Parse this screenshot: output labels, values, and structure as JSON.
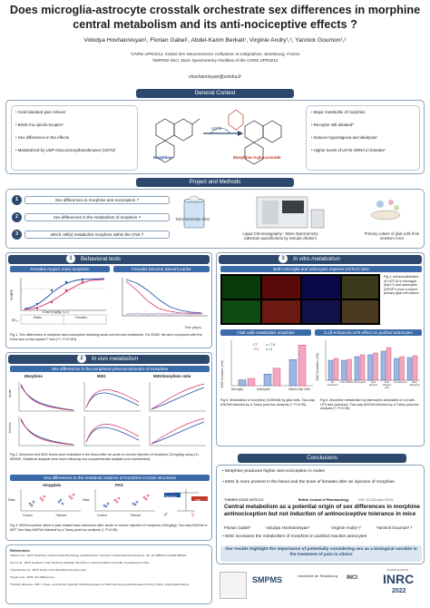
{
  "header": {
    "title": "Does microglia-astrocyte crosstalk orchestrate sex differences in morphine central metabolism and its anti-nociceptive effects ?",
    "authors": "Volodya Hovhannisyan¹, Florian Gabel¹, Abdel-Karim Berkati¹, Virginie Andry¹,², Yannick Goumon¹,²",
    "affiliation1": "¹CNRS UPR3212, Institut des Neurosciences Cellulaires et Intégratives, Strasbourg, France",
    "affiliation2": "²SMPMS-INCI, Mass Spectrometry Facilities of the CNRS UPR3212",
    "email": "vhovhannisyan@unistra.fr"
  },
  "general_context": {
    "heading": "General Context",
    "left_bullets": [
      "Gold standard pain reliever",
      "Binds mu opioid receptor¹",
      "Sex differences in the effects",
      "Metabolized by UDP-Glucuronosyltransferases (UGTs)²"
    ],
    "right_bullets": [
      "Major metabolite of morphine",
      "Receptor still debated³",
      "Induces hyperalgesia and allodynia⁴",
      "Higher levels of UGTs mRNA in females⁵"
    ],
    "morphine_label": "Morphine",
    "metabolite_label": "Morphine-3-glucuronide",
    "enzyme_label": "UGTs"
  },
  "project": {
    "heading": "Project and Methods",
    "questions": [
      {
        "num": "1",
        "text": "Sex differences in morphine anti-nociception ?"
      },
      {
        "num": "2",
        "text": "Sex differences in the metabolism of morphine ?"
      },
      {
        "num": "3",
        "text": "which cell(s) metabolize morphine within the CNS ?"
      }
    ],
    "method1": "Tail Immersion Test",
    "method2": "Liquid Chromatography - Mass Spectrometry (absolute quantification by isotopic dilution)",
    "method3": "Primary culture of glial cells from newborn mice"
  },
  "behavioral": {
    "num": "1",
    "heading": "Behavioral tests",
    "panel_a": "Females require more morphine",
    "panel_b": "Females become tolerant earlier",
    "ylabel_a": "% MPE",
    "xlabel_a": "Dose (mg/kg, s.c.)",
    "xlabel_b": "Time (days)",
    "ed50_label": "ED₅₀",
    "ed50_cols": [
      "Males",
      "Females"
    ],
    "caption": "Fig 1. Sex differences of morphine anti-nociception following acute and chronic treatments. For ED50, fits were compared with the extra sum-of-the-square F test (***, P<0.001)."
  },
  "in_vivo": {
    "num": "2",
    "heading": "In vivo metabolism",
    "subheading": "Sex differences in the peripheral pharmacokinetics of morphine",
    "col_labels": [
      "Morphine",
      "M3G",
      "M3G/morphine ratio"
    ],
    "row_labels": [
      "Acute",
      "Chronic"
    ],
    "caption": "Fig 2. Morphine and M3G levels were evaluated in the blood after an acute or chronic injection of morphine (10mg/kg) using LC-MS/MS. Statistical analysis were done following non-compartmental analysis (not represented).",
    "brain_head": "Sex differences in the metabolic balance of morphine in brain structures",
    "brain_panels": [
      "Amygdala",
      "PAG"
    ],
    "brain_ylabel": "Ratio",
    "brain_x": [
      "Control",
      "Tolerant"
    ],
    "brain_caption": "Fig 3. M3G/morphine ratios in pain related brain structures after acute or chronic injection of morphine (10mg/kg). Two-way ANOVA or ART Two-Way ANOVA followed by a Tukey post-hoc analysis (*, P<0.05).",
    "balance_left": "Morphine",
    "balance_right": "M3G"
  },
  "in_vitro": {
    "num": "3",
    "heading": "In vitro metabolism",
    "subheading": "Both microglia and astrocytes express UGTs in vitro",
    "fig4_caption": "Fig 4. Immunodetection of UGT1A in microglia (Iba1+) and astrocytes (GFAP+) from a mixed primary glial cell culture.",
    "glial_head": "Glial cells metabolize morphine",
    "lps_head": "IL1β enhances LPS effect on purified astrocytes",
    "ylabel": "M3G formation (nM)",
    "glial_x": [
      "Microglia",
      "Astrocytes",
      "Mixed Glial Cells"
    ],
    "legend_ct": "CT",
    "legend_lps": "LPS",
    "n_labels": [
      "n = 7-8",
      "n = 6"
    ],
    "lps_x": [
      "No Treatment",
      "0.1% DMSO",
      "LPS 1µg/mL",
      "IL1β 10ng/mL",
      "IL1β 10ng/mL LPS",
      "IL4 20ng/mL",
      "IFNγ 100ng/mL"
    ],
    "fig5_caption": "Fig 5. Metabolism of morphine (1000nM) by glial cells. Two-way ANOVA followed by a Tukey post-hoc analysis (*, P<0.05).",
    "fig6_caption": "Fig 6. Morphine metabolism by astrocytes stimulated or not with LPS and cytokines. Two-way ANOVA followed by a Tukey post-hoc analysis (*, P<0.05)."
  },
  "conclusions": {
    "heading": "Conclusions",
    "items": [
      "Morphine produces higher anti-nociception in males",
      "M3G is more present in the blood and the brain of females after an injection of morphine",
      "M3G increases the metabolism of morphine in purified reactive astrocytes"
    ],
    "article_tag": "THEMED ISSUE ARTICLE",
    "journal": "British Journal of Pharmacology",
    "doi": "DOI: 10.1111/bph.15792",
    "article_title": "Central metabolism as a potential origin of sex differences in morphine antinociception but not induction of antinociceptive tolerance in mice",
    "article_authors": [
      "Florian Gabel¹",
      "Volodya Hovhannisyan¹",
      "Virginie Andry¹,²",
      "Yannick Goumon¹,²"
    ],
    "takeaway": "Our results highlight the importance of potentially considering sex as a biological variable in the treatment of pain in clinics"
  },
  "references": {
    "heading": "References",
    "lines": [
      "¹Gabel et al., 2022. Morphine-3-Glucuronide Physiology and Behaviour. Frontiers in Molecular Neuroscience. doi: 10.3389/fnmol.2022.882443",
      "²Kuo et al., 2016. Evidence That Interferon-Mediates Morphine in Glucuronidation Could Be Considered for Pain...",
      "³Yamashita et al., 2015. Roles of the Morphine Receptor-Like...",
      "⁴Doyle et al., 2023. Sex Differences...",
      "⁵Hubbery-Bresson, 2007. Tissue- and Gender-Specific mRNA Expression of UDP-Glucuronosyltransferases (UGTs) in Mice. Drug Metab Dispos."
    ]
  },
  "logos": {
    "smpms": "SMPMS",
    "unistra": "Université de Strasbourg",
    "inci": "INCI",
    "inrc": "INRC",
    "inrc_year": "2022",
    "inrc_place": "VALENCIA SPAIN"
  },
  "colors": {
    "primary": "#2d4a6e",
    "accent": "#3b6aa8",
    "male": "#1f4fa0",
    "female": "#d6336c",
    "metabolite": "#c0392b"
  }
}
